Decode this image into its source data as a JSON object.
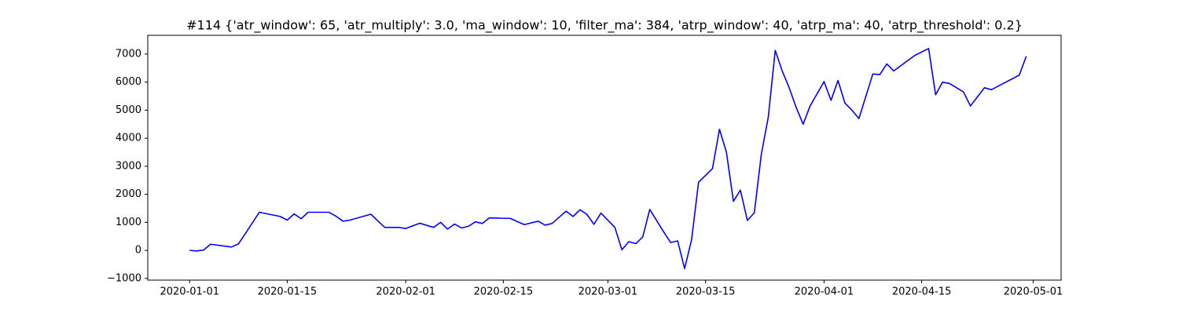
{
  "chart_data": {
    "type": "line",
    "title": "#114 {'atr_window': 65, 'atr_multiply': 3.0, 'ma_window': 10, 'filter_ma': 384, 'atrp_window': 40, 'atrp_ma': 40, 'atrp_threshold': 0.2}",
    "color": "#0000ff",
    "x": [
      "2020-01-01",
      "2020-01-02",
      "2020-01-03",
      "2020-01-04",
      "2020-01-07",
      "2020-01-08",
      "2020-01-09",
      "2020-01-11",
      "2020-01-14",
      "2020-01-15",
      "2020-01-16",
      "2020-01-17",
      "2020-01-18",
      "2020-01-21",
      "2020-01-22",
      "2020-01-23",
      "2020-01-24",
      "2020-01-27",
      "2020-01-28",
      "2020-01-29",
      "2020-01-31",
      "2020-02-01",
      "2020-02-03",
      "2020-02-05",
      "2020-02-06",
      "2020-02-07",
      "2020-02-08",
      "2020-02-09",
      "2020-02-10",
      "2020-02-11",
      "2020-02-12",
      "2020-02-13",
      "2020-02-16",
      "2020-02-18",
      "2020-02-20",
      "2020-02-21",
      "2020-02-22",
      "2020-02-24",
      "2020-02-25",
      "2020-02-26",
      "2020-02-27",
      "2020-02-28",
      "2020-02-29",
      "2020-03-02",
      "2020-03-03",
      "2020-03-04",
      "2020-03-05",
      "2020-03-06",
      "2020-03-07",
      "2020-03-09",
      "2020-03-10",
      "2020-03-11",
      "2020-03-12",
      "2020-03-13",
      "2020-03-14",
      "2020-03-16",
      "2020-03-17",
      "2020-03-18",
      "2020-03-19",
      "2020-03-20",
      "2020-03-21",
      "2020-03-22",
      "2020-03-23",
      "2020-03-24",
      "2020-03-25",
      "2020-03-26",
      "2020-03-27",
      "2020-03-28",
      "2020-03-29",
      "2020-03-30",
      "2020-04-01",
      "2020-04-02",
      "2020-04-03",
      "2020-04-04",
      "2020-04-05",
      "2020-04-06",
      "2020-04-08",
      "2020-04-09",
      "2020-04-10",
      "2020-04-11",
      "2020-04-14",
      "2020-04-16",
      "2020-04-17",
      "2020-04-18",
      "2020-04-19",
      "2020-04-21",
      "2020-04-22",
      "2020-04-24",
      "2020-04-25",
      "2020-04-29",
      "2020-04-30"
    ],
    "values": [
      0,
      -20,
      10,
      220,
      120,
      230,
      600,
      1360,
      1210,
      1080,
      1300,
      1130,
      1360,
      1360,
      1220,
      1040,
      1080,
      1290,
      1050,
      820,
      820,
      780,
      970,
      820,
      1000,
      760,
      940,
      800,
      860,
      1020,
      960,
      1160,
      1140,
      920,
      1040,
      900,
      960,
      1400,
      1210,
      1450,
      1280,
      930,
      1330,
      820,
      20,
      310,
      240,
      480,
      1460,
      660,
      280,
      340,
      -650,
      380,
      2430,
      2920,
      4320,
      3500,
      1750,
      2150,
      1070,
      1340,
      3420,
      4750,
      7130,
      6400,
      5800,
      5100,
      4500,
      5150,
      6020,
      5350,
      6060,
      5250,
      5000,
      4700,
      6290,
      6270,
      6650,
      6400,
      6950,
      7200,
      5550,
      6000,
      5950,
      5650,
      5150,
      5800,
      5730,
      6250,
      6920
    ],
    "xlim": [
      "2019-12-26",
      "2020-05-05"
    ],
    "xticks": [
      "2020-01-01",
      "2020-01-15",
      "2020-02-01",
      "2020-02-15",
      "2020-03-01",
      "2020-03-15",
      "2020-04-01",
      "2020-04-15",
      "2020-05-01"
    ],
    "ylim": [
      -1060,
      7670
    ],
    "yticks": [
      {
        "value": -1000,
        "label": "−1000"
      },
      0,
      1000,
      2000,
      3000,
      4000,
      5000,
      6000,
      7000
    ]
  }
}
